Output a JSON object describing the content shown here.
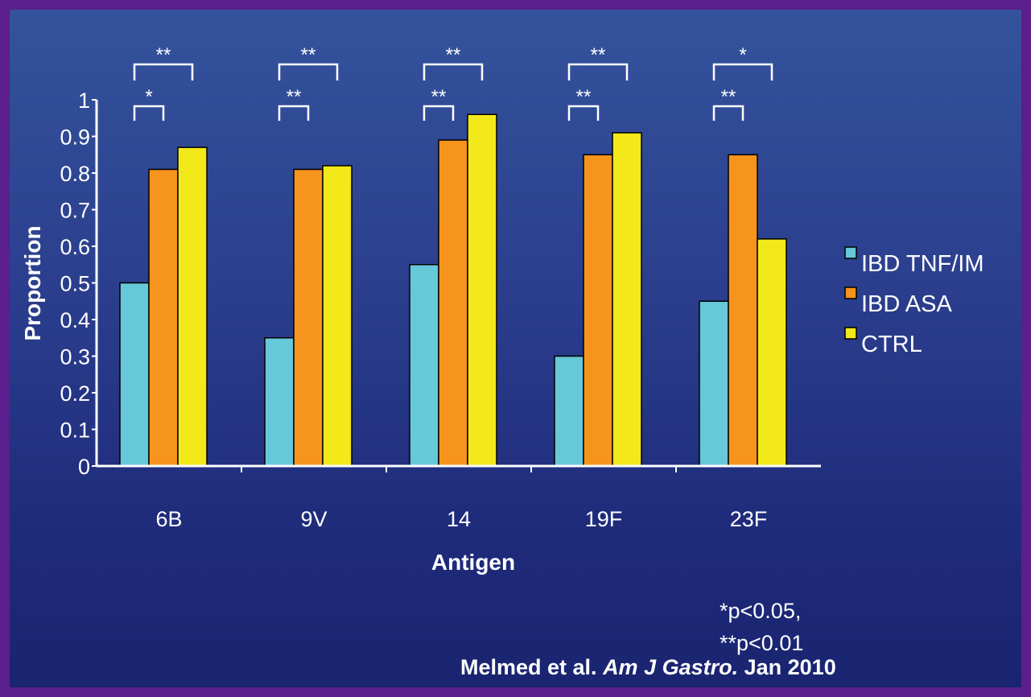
{
  "chart_data": {
    "type": "bar",
    "xlabel": "Antigen",
    "ylabel": "Proportion",
    "ylim": [
      0,
      1
    ],
    "yticks": [
      "0",
      "0.1",
      "0.2",
      "0.3",
      "0.4",
      "0.5",
      "0.6",
      "0.7",
      "0.8",
      "0.9",
      "1"
    ],
    "categories": [
      "6B",
      "9V",
      "14",
      "19F",
      "23F"
    ],
    "series": [
      {
        "name": "IBD TNF/IM",
        "color": "#66c8d8",
        "values": [
          0.5,
          0.35,
          0.55,
          0.3,
          0.45
        ]
      },
      {
        "name": "IBD ASA",
        "color": "#f7941d",
        "values": [
          0.81,
          0.81,
          0.89,
          0.85,
          0.85
        ]
      },
      {
        "name": "CTRL",
        "color": "#f2e81a",
        "values": [
          0.87,
          0.82,
          0.96,
          0.91,
          0.62
        ]
      }
    ],
    "significance": [
      {
        "upper": "**",
        "lower": "*"
      },
      {
        "upper": "**",
        "lower": "**"
      },
      {
        "upper": "**",
        "lower": "**"
      },
      {
        "upper": "**",
        "lower": "**"
      },
      {
        "upper": "*",
        "lower": "**"
      }
    ],
    "legend_position": "right",
    "grid": false
  },
  "notes": {
    "p1": "*p<0.05,",
    "p2": "**p<0.01"
  },
  "citation": {
    "authors": "Melmed  et al. ",
    "journal": "Am J Gastro.",
    "date": " Jan 2010"
  }
}
